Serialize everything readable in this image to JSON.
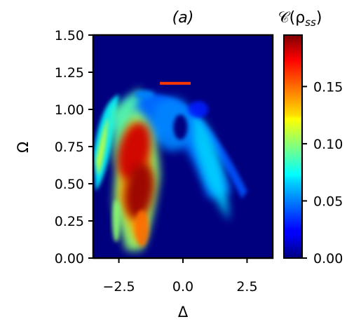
{
  "chart_data": {
    "type": "heatmap",
    "title": "(a)",
    "xlabel": "Δ",
    "ylabel": "Ω",
    "xlim": [
      -3.5,
      3.5
    ],
    "ylim": [
      0.0,
      1.5
    ],
    "x_ticks": [
      -2.5,
      0.0,
      2.5
    ],
    "x_tick_labels": [
      "−2.5",
      "0.0",
      "2.5"
    ],
    "y_ticks": [
      0.0,
      0.25,
      0.5,
      0.75,
      1.0,
      1.25,
      1.5
    ],
    "y_tick_labels": [
      "0.00",
      "0.25",
      "0.50",
      "0.75",
      "1.00",
      "1.25",
      "1.50"
    ],
    "colorbar": {
      "label": "𝒞(ρ",
      "label_sub": "ss",
      "label_close": ")",
      "range": [
        0.0,
        0.195
      ],
      "ticks": [
        0.0,
        0.05,
        0.1,
        0.15
      ],
      "tick_labels": [
        "0.00",
        "0.05",
        "0.10",
        "0.15"
      ],
      "colormap": "jet"
    },
    "grid": false,
    "features": [
      {
        "x": -1.9,
        "y": 0.75,
        "value": 0.18
      },
      {
        "x": -1.8,
        "y": 0.45,
        "value": 0.19
      },
      {
        "x": -1.7,
        "y": 0.12,
        "value": 0.14
      },
      {
        "x": -3.0,
        "y": 0.8,
        "value": 0.1
      },
      {
        "x": -0.2,
        "y": 1.18,
        "value": 0.16
      },
      {
        "x": -0.5,
        "y": 0.95,
        "value": 0.05
      },
      {
        "x": 0.9,
        "y": 0.8,
        "value": 0.06
      }
    ]
  }
}
